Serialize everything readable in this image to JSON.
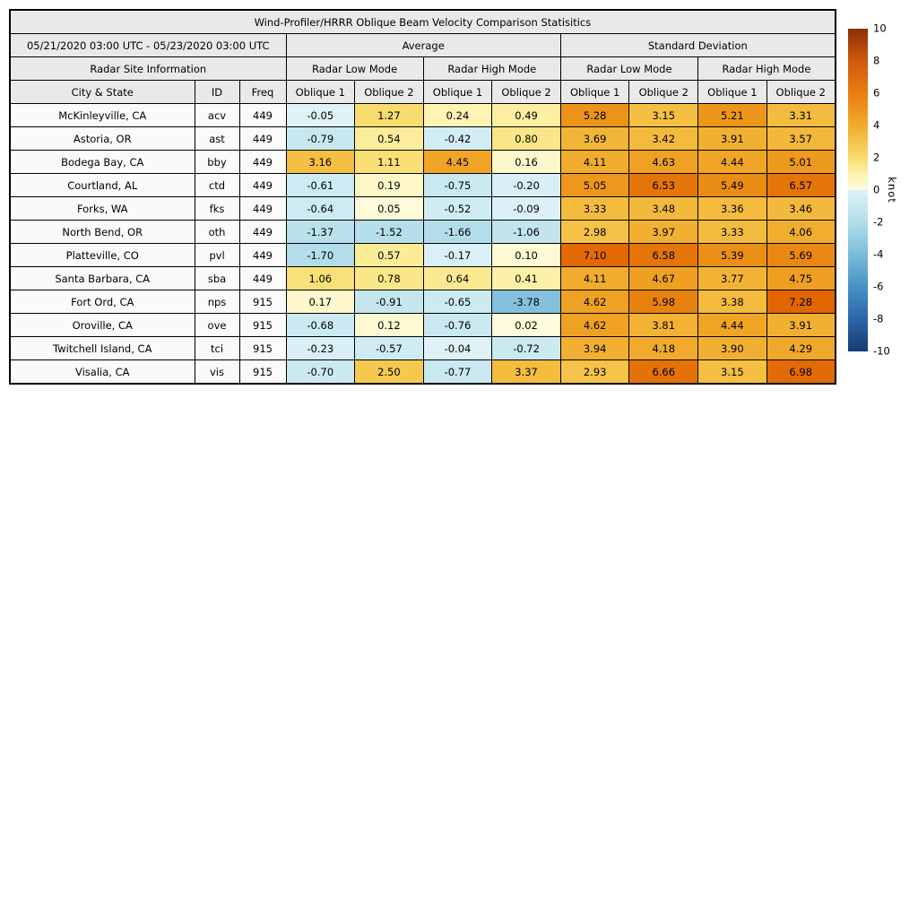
{
  "chart_data": {
    "type": "table",
    "title": "Wind-Profiler/HRRR Oblique Beam Velocity Comparison Statisitics",
    "date_range": "05/21/2020 03:00 UTC - 05/23/2020 03:00 UTC",
    "section_headers": {
      "site_info": "Radar Site Information",
      "average": "Average",
      "std_dev": "Standard Deviation"
    },
    "mode_headers": [
      "Radar Low Mode",
      "Radar High Mode",
      "Radar Low Mode",
      "Radar High Mode"
    ],
    "column_headers": [
      "City & State",
      "ID",
      "Freq",
      "Oblique 1",
      "Oblique 2",
      "Oblique 1",
      "Oblique 2",
      "Oblique 1",
      "Oblique 2",
      "Oblique 1",
      "Oblique 2"
    ],
    "rows": [
      {
        "city": "McKinleyville, CA",
        "id": "acv",
        "freq": "449",
        "cells": [
          {
            "v": "-0.05",
            "c": "#def2f8"
          },
          {
            "v": "1.27",
            "c": "#f8dc6e"
          },
          {
            "v": "0.24",
            "c": "#fdf4b4"
          },
          {
            "v": "0.49",
            "c": "#fcefa2"
          },
          {
            "v": "5.28",
            "c": "#ec9418"
          },
          {
            "v": "3.15",
            "c": "#f4bf42"
          },
          {
            "v": "5.21",
            "c": "#ec961a"
          },
          {
            "v": "3.31",
            "c": "#f4bc3f"
          }
        ]
      },
      {
        "city": "Astoria, OR",
        "id": "ast",
        "freq": "449",
        "cells": [
          {
            "v": "-0.79",
            "c": "#c8e8f0"
          },
          {
            "v": "0.54",
            "c": "#fbed9c"
          },
          {
            "v": "-0.42",
            "c": "#d2edf4"
          },
          {
            "v": "0.80",
            "c": "#fae686"
          },
          {
            "v": "3.69",
            "c": "#f3b537"
          },
          {
            "v": "3.42",
            "c": "#f3ba3d"
          },
          {
            "v": "3.91",
            "c": "#f2b032"
          },
          {
            "v": "3.57",
            "c": "#f3b739"
          }
        ]
      },
      {
        "city": "Bodega Bay, CA",
        "id": "bby",
        "freq": "449",
        "cells": [
          {
            "v": "3.16",
            "c": "#f4bf42"
          },
          {
            "v": "1.11",
            "c": "#f9df75"
          },
          {
            "v": "4.45",
            "c": "#f0a527"
          },
          {
            "v": "0.16",
            "c": "#fdf8cc"
          },
          {
            "v": "4.11",
            "c": "#f1ab2e"
          },
          {
            "v": "4.63",
            "c": "#efa124"
          },
          {
            "v": "4.44",
            "c": "#f0a527"
          },
          {
            "v": "5.01",
            "c": "#ed991d"
          }
        ]
      },
      {
        "city": "Courtland, AL",
        "id": "ctd",
        "freq": "449",
        "cells": [
          {
            "v": "-0.61",
            "c": "#cdebf2"
          },
          {
            "v": "0.19",
            "c": "#fdf7c8"
          },
          {
            "v": "-0.75",
            "c": "#c9e9f0"
          },
          {
            "v": "-0.20",
            "c": "#d8eff6"
          },
          {
            "v": "5.05",
            "c": "#ed981c"
          },
          {
            "v": "6.53",
            "c": "#e5750a"
          },
          {
            "v": "5.49",
            "c": "#ea8d14"
          },
          {
            "v": "6.57",
            "c": "#e57409"
          }
        ]
      },
      {
        "city": "Forks, WA",
        "id": "fks",
        "freq": "449",
        "cells": [
          {
            "v": "-0.64",
            "c": "#ccebf2"
          },
          {
            "v": "0.05",
            "c": "#fefbda"
          },
          {
            "v": "-0.52",
            "c": "#cfecf3"
          },
          {
            "v": "-0.09",
            "c": "#dcf1f7"
          },
          {
            "v": "3.33",
            "c": "#f4bc3f"
          },
          {
            "v": "3.48",
            "c": "#f3b93b"
          },
          {
            "v": "3.36",
            "c": "#f4bb3e"
          },
          {
            "v": "3.46",
            "c": "#f3b93c"
          }
        ]
      },
      {
        "city": "North Bend, OR",
        "id": "oth",
        "freq": "449",
        "cells": [
          {
            "v": "-1.37",
            "c": "#bae1eb"
          },
          {
            "v": "-1.52",
            "c": "#b6dfea"
          },
          {
            "v": "-1.66",
            "c": "#b3dde9"
          },
          {
            "v": "-1.06",
            "c": "#c1e4ed"
          },
          {
            "v": "2.98",
            "c": "#f5c246"
          },
          {
            "v": "3.97",
            "c": "#f2af31"
          },
          {
            "v": "3.33",
            "c": "#f4bc3f"
          },
          {
            "v": "4.06",
            "c": "#f1ad2f"
          }
        ]
      },
      {
        "city": "Platteville, CO",
        "id": "pvl",
        "freq": "449",
        "cells": [
          {
            "v": "-1.70",
            "c": "#b2dde9"
          },
          {
            "v": "0.57",
            "c": "#fbec98"
          },
          {
            "v": "-0.17",
            "c": "#d9f0f6"
          },
          {
            "v": "0.10",
            "c": "#fdfad4"
          },
          {
            "v": "7.10",
            "c": "#e26905"
          },
          {
            "v": "6.58",
            "c": "#e57409"
          },
          {
            "v": "5.39",
            "c": "#eb9016"
          },
          {
            "v": "5.69",
            "c": "#e98812"
          }
        ]
      },
      {
        "city": "Santa Barbara, CA",
        "id": "sba",
        "freq": "449",
        "cells": [
          {
            "v": "1.06",
            "c": "#f9e078"
          },
          {
            "v": "0.78",
            "c": "#fae788"
          },
          {
            "v": "0.64",
            "c": "#fbe992"
          },
          {
            "v": "0.41",
            "c": "#fcf0a8"
          },
          {
            "v": "4.11",
            "c": "#f1ab2e"
          },
          {
            "v": "4.67",
            "c": "#efa023"
          },
          {
            "v": "3.77",
            "c": "#f2b335"
          },
          {
            "v": "4.75",
            "c": "#ee9e21"
          }
        ]
      },
      {
        "city": "Fort Ord, CA",
        "id": "nps",
        "freq": "915",
        "cells": [
          {
            "v": "0.17",
            "c": "#fdf8cb"
          },
          {
            "v": "-0.91",
            "c": "#c5e6ef"
          },
          {
            "v": "-0.65",
            "c": "#cceaf2"
          },
          {
            "v": "-3.78",
            "c": "#84c0dc"
          },
          {
            "v": "4.62",
            "c": "#efa124"
          },
          {
            "v": "5.98",
            "c": "#e8820f"
          },
          {
            "v": "3.38",
            "c": "#f4bb3e"
          },
          {
            "v": "7.28",
            "c": "#e16503"
          }
        ]
      },
      {
        "city": "Oroville, CA",
        "id": "ove",
        "freq": "915",
        "cells": [
          {
            "v": "-0.68",
            "c": "#cbeaf1"
          },
          {
            "v": "0.12",
            "c": "#fdf9d2"
          },
          {
            "v": "-0.76",
            "c": "#c9e8f0"
          },
          {
            "v": "0.02",
            "c": "#fefcdc"
          },
          {
            "v": "4.62",
            "c": "#efa124"
          },
          {
            "v": "3.81",
            "c": "#f2b234"
          },
          {
            "v": "4.44",
            "c": "#f0a527"
          },
          {
            "v": "3.91",
            "c": "#f2b032"
          }
        ]
      },
      {
        "city": "Twitchell Island, CA",
        "id": "tci",
        "freq": "915",
        "cells": [
          {
            "v": "-0.23",
            "c": "#d7eff5"
          },
          {
            "v": "-0.57",
            "c": "#ceebf3"
          },
          {
            "v": "-0.04",
            "c": "#def2f8"
          },
          {
            "v": "-0.72",
            "c": "#cae9f1"
          },
          {
            "v": "3.94",
            "c": "#f2af31"
          },
          {
            "v": "4.18",
            "c": "#f1aa2c"
          },
          {
            "v": "3.90",
            "c": "#f2b032"
          },
          {
            "v": "4.29",
            "c": "#f0a82a"
          }
        ]
      },
      {
        "city": "Visalia, CA",
        "id": "vis",
        "freq": "915",
        "cells": [
          {
            "v": "-0.70",
            "c": "#cbe9f1"
          },
          {
            "v": "2.50",
            "c": "#f6c94e"
          },
          {
            "v": "-0.77",
            "c": "#c9e8f0"
          },
          {
            "v": "3.37",
            "c": "#f4bb3e"
          },
          {
            "v": "2.93",
            "c": "#f5c347"
          },
          {
            "v": "6.66",
            "c": "#e47208"
          },
          {
            "v": "3.15",
            "c": "#f4bf42"
          },
          {
            "v": "6.98",
            "c": "#e36b06"
          }
        ]
      }
    ],
    "colorbar": {
      "label": "knot",
      "range": [
        -10,
        10
      ],
      "ticks": [
        {
          "label": "10",
          "value": 10
        },
        {
          "label": "8",
          "value": 8
        },
        {
          "label": "6",
          "value": 6
        },
        {
          "label": "4",
          "value": 4
        },
        {
          "label": "2",
          "value": 2
        },
        {
          "label": "0",
          "value": 0
        },
        {
          "label": "-2",
          "value": -2
        },
        {
          "label": "-4",
          "value": -4
        },
        {
          "label": "-6",
          "value": -6
        },
        {
          "label": "-8",
          "value": -8
        },
        {
          "label": "-10",
          "value": -10
        }
      ],
      "gradient_stops": [
        {
          "pos": 0,
          "color": "#173a70"
        },
        {
          "pos": 10,
          "color": "#2b66a8"
        },
        {
          "pos": 20,
          "color": "#4791c5"
        },
        {
          "pos": 30,
          "color": "#7cbcda"
        },
        {
          "pos": 40,
          "color": "#b0dde9"
        },
        {
          "pos": 49.8,
          "color": "#ddf1f7"
        },
        {
          "pos": 50.2,
          "color": "#fefce2"
        },
        {
          "pos": 55,
          "color": "#fcf2ae"
        },
        {
          "pos": 60,
          "color": "#f8dc6e"
        },
        {
          "pos": 70,
          "color": "#f1ab2e"
        },
        {
          "pos": 80,
          "color": "#e87d10"
        },
        {
          "pos": 90,
          "color": "#cf5a0d"
        },
        {
          "pos": 100,
          "color": "#8c2d0a"
        }
      ]
    },
    "colors": {
      "header_bg": "#e9e9e9",
      "meta_cell_bg": "#fafafa",
      "border": "#000000"
    }
  }
}
